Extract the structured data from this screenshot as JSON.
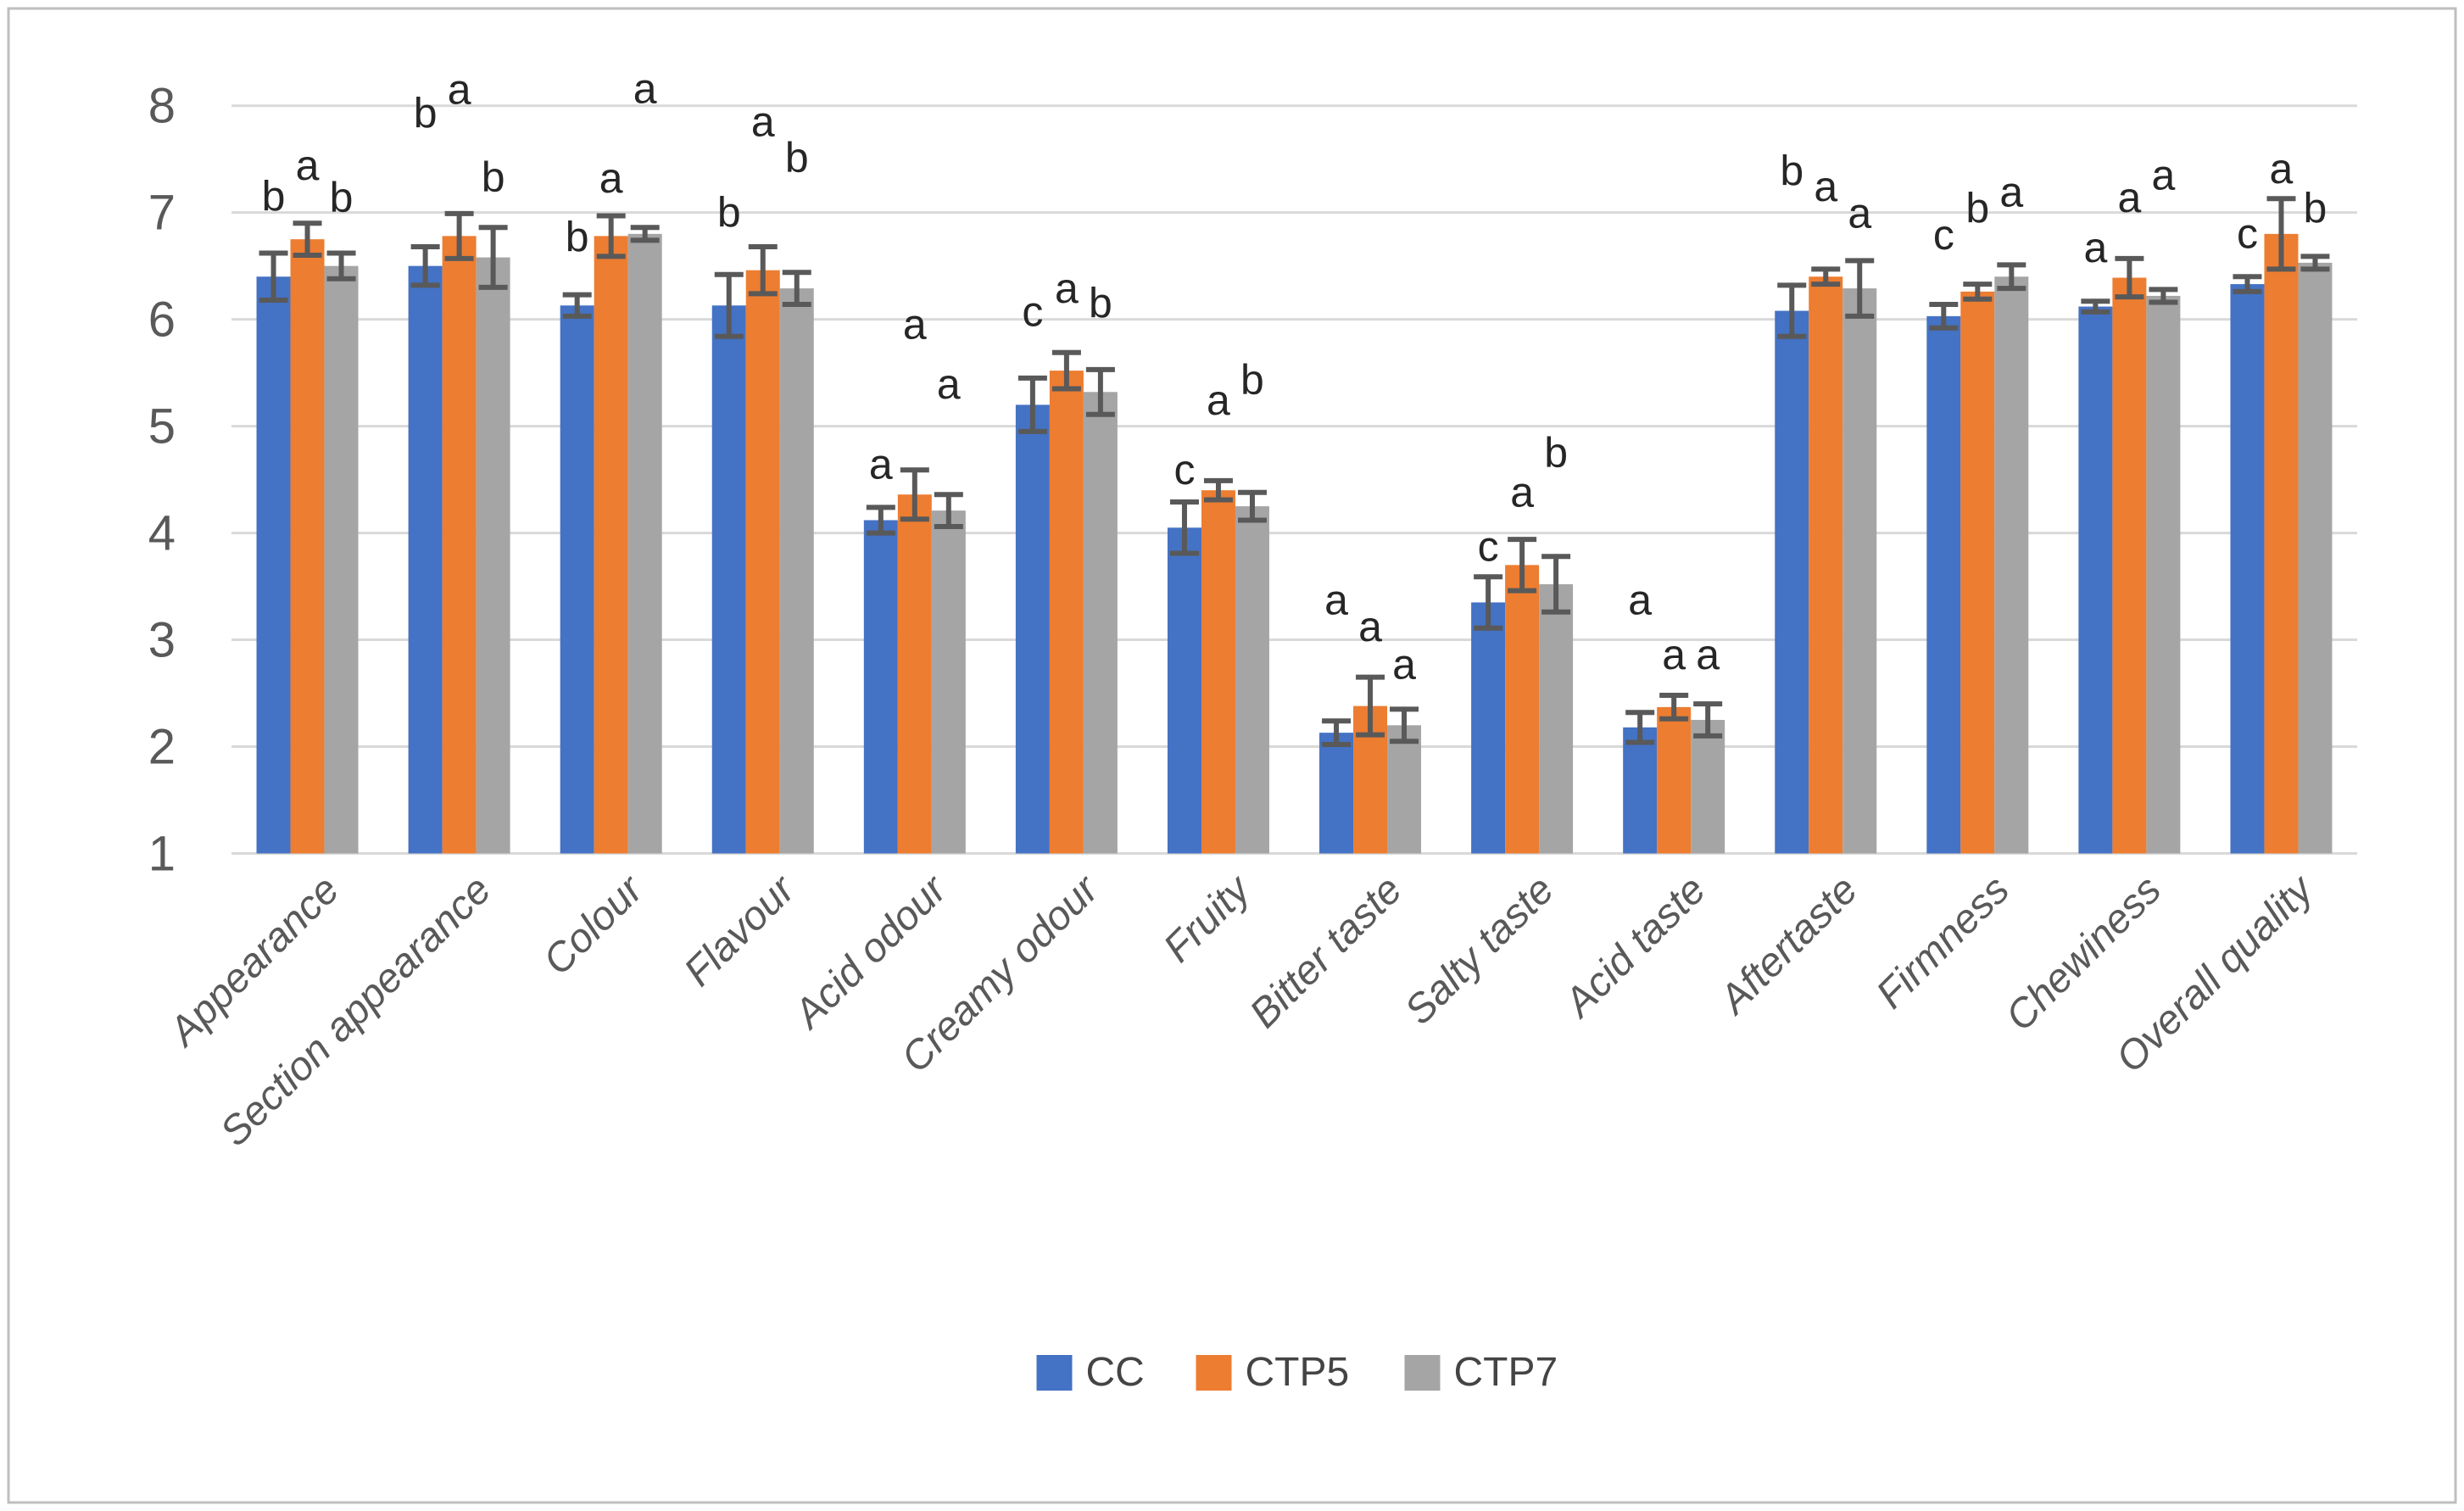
{
  "figure": {
    "background_color": "#FFFFFF",
    "border_color": "#BFBFBF",
    "gridline_color": "#D9D9D9",
    "error_bar_color": "#595959",
    "axis_text_color": "#595959",
    "letter_color": "#262626"
  },
  "legend": {
    "items": [
      {
        "label": "CC",
        "color": "#4472C4",
        "swatch": "square"
      },
      {
        "label": "CTP5",
        "color": "#ED7D31",
        "swatch": "square"
      },
      {
        "label": "CTP7",
        "color": "#A5A5A5",
        "swatch": "square"
      }
    ],
    "position": "bottom-center"
  },
  "chart_data": {
    "type": "bar",
    "title": "",
    "xlabel": "",
    "ylabel": "",
    "ylim": [
      1,
      8
    ],
    "yticks": [
      1,
      2,
      3,
      4,
      5,
      6,
      7,
      8
    ],
    "grid": "horizontal",
    "legend_position": "bottom",
    "error_bars": true,
    "categories": [
      "Appearance",
      "Section appearance",
      "Colour",
      "Flavour",
      "Acid odour",
      "Creamy odour",
      "Fruity",
      "Bitter taste",
      "Salty taste",
      "Acid taste",
      "Aftertaste",
      "Firmness",
      "Chewiness",
      "Overall quality"
    ],
    "series": [
      {
        "name": "CC",
        "color": "#4472C4",
        "values": [
          6.4,
          6.5,
          6.13,
          6.13,
          4.12,
          5.2,
          4.05,
          2.13,
          3.35,
          2.18,
          6.08,
          6.03,
          6.12,
          6.33
        ],
        "errors": [
          0.22,
          0.18,
          0.1,
          0.29,
          0.12,
          0.25,
          0.24,
          0.11,
          0.24,
          0.14,
          0.24,
          0.11,
          0.05,
          0.07
        ],
        "letters": [
          "b",
          "b",
          "b",
          "b",
          "a",
          "c",
          "c",
          "a",
          "c",
          "a",
          "b",
          "c",
          "a",
          "c"
        ],
        "letter_y": [
          7.16,
          7.94,
          6.78,
          7.01,
          4.65,
          6.08,
          4.6,
          3.38,
          3.88,
          3.38,
          7.4,
          6.8,
          6.68,
          6.81
        ]
      },
      {
        "name": "CTP5",
        "color": "#ED7D31",
        "values": [
          6.75,
          6.78,
          6.78,
          6.46,
          4.36,
          5.52,
          4.4,
          2.38,
          3.7,
          2.37,
          6.4,
          6.26,
          6.39,
          6.8
        ],
        "errors": [
          0.15,
          0.21,
          0.19,
          0.22,
          0.23,
          0.17,
          0.09,
          0.27,
          0.24,
          0.11,
          0.07,
          0.07,
          0.18,
          0.33
        ],
        "letters": [
          "a",
          "a",
          "a",
          "a",
          "a",
          "a",
          "a",
          "a",
          "a",
          "a",
          "a",
          "b",
          "a",
          "a"
        ],
        "letter_y": [
          7.45,
          8.16,
          7.33,
          7.86,
          5.96,
          6.3,
          5.25,
          3.13,
          4.39,
          2.87,
          7.25,
          7.05,
          7.15,
          7.42
        ]
      },
      {
        "name": "CTP7",
        "color": "#A5A5A5",
        "values": [
          6.5,
          6.58,
          6.8,
          6.29,
          4.21,
          5.32,
          4.25,
          2.2,
          3.52,
          2.25,
          6.29,
          6.4,
          6.22,
          6.53
        ],
        "errors": [
          0.12,
          0.28,
          0.06,
          0.15,
          0.15,
          0.21,
          0.13,
          0.15,
          0.26,
          0.15,
          0.26,
          0.11,
          0.06,
          0.06
        ],
        "letters": [
          "b",
          "b",
          "a",
          "b",
          "a",
          "b",
          "b",
          "a",
          "b",
          "a",
          "a",
          "a",
          "a",
          "b"
        ],
        "letter_y": [
          7.15,
          7.34,
          8.17,
          7.52,
          5.4,
          6.16,
          5.44,
          2.78,
          4.76,
          2.87,
          7.0,
          7.2,
          7.36,
          7.05
        ]
      }
    ]
  }
}
